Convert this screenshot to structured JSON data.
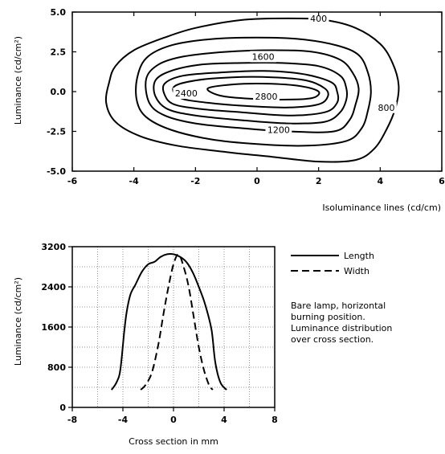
{
  "chart_data": [
    {
      "type": "line",
      "subtype": "contour",
      "title": "",
      "xlabel": "Isoluminance lines (cd/cm)",
      "ylabel": "Luminance (cd/cm²)",
      "xlim": [
        -6,
        6
      ],
      "ylim": [
        -5.0,
        5.0
      ],
      "xticks": [
        "-6",
        "-4",
        "-2",
        "0",
        "2",
        "4",
        "6"
      ],
      "yticks": [
        "5.0",
        "2.5",
        "0.0",
        "-2.5",
        "-5.0"
      ],
      "grid": false,
      "contour_labels": [
        "400",
        "1600",
        "2400",
        "2800",
        "800",
        "1200"
      ],
      "contours": [
        {
          "level": 400,
          "points": [
            [
              -4.8,
              0.6
            ],
            [
              -4.6,
              1.6
            ],
            [
              -4.0,
              2.6
            ],
            [
              -3.0,
              3.4
            ],
            [
              -2.0,
              4.0
            ],
            [
              -0.5,
              4.5
            ],
            [
              1.0,
              4.6
            ],
            [
              2.2,
              4.5
            ],
            [
              3.2,
              4.0
            ],
            [
              4.0,
              3.0
            ],
            [
              4.4,
              1.8
            ],
            [
              4.6,
              0.4
            ],
            [
              4.5,
              -1.0
            ],
            [
              4.2,
              -2.4
            ],
            [
              3.8,
              -3.6
            ],
            [
              3.2,
              -4.3
            ],
            [
              2.0,
              -4.4
            ],
            [
              0.5,
              -4.1
            ],
            [
              -1.0,
              -3.8
            ],
            [
              -2.6,
              -3.4
            ],
            [
              -3.8,
              -2.8
            ],
            [
              -4.6,
              -1.9
            ],
            [
              -4.9,
              -0.7
            ]
          ]
        },
        {
          "level": 800,
          "points": [
            [
              -3.9,
              0.8
            ],
            [
              -3.6,
              2.1
            ],
            [
              -2.8,
              2.9
            ],
            [
              -1.5,
              3.3
            ],
            [
              0.0,
              3.4
            ],
            [
              1.4,
              3.3
            ],
            [
              2.6,
              2.9
            ],
            [
              3.3,
              2.3
            ],
            [
              3.6,
              1.2
            ],
            [
              3.7,
              0.0
            ],
            [
              3.6,
              -1.2
            ],
            [
              3.4,
              -2.3
            ],
            [
              2.9,
              -3.1
            ],
            [
              1.6,
              -3.4
            ],
            [
              0.0,
              -3.3
            ],
            [
              -1.5,
              -3.0
            ],
            [
              -2.8,
              -2.4
            ],
            [
              -3.6,
              -1.6
            ],
            [
              -3.9,
              -0.6
            ]
          ]
        },
        {
          "level": 1200,
          "points": [
            [
              -3.6,
              0.8
            ],
            [
              -3.2,
              1.7
            ],
            [
              -2.4,
              2.2
            ],
            [
              -1.0,
              2.5
            ],
            [
              0.5,
              2.6
            ],
            [
              1.8,
              2.5
            ],
            [
              2.7,
              2.0
            ],
            [
              3.1,
              1.2
            ],
            [
              3.3,
              0.2
            ],
            [
              3.2,
              -0.8
            ],
            [
              3.0,
              -1.8
            ],
            [
              2.5,
              -2.5
            ],
            [
              1.0,
              -2.5
            ],
            [
              -0.5,
              -2.3
            ],
            [
              -2.0,
              -2.0
            ],
            [
              -3.0,
              -1.5
            ],
            [
              -3.5,
              -0.7
            ]
          ]
        },
        {
          "level": 1600,
          "points": [
            [
              -3.3,
              0.7
            ],
            [
              -2.8,
              1.3
            ],
            [
              -1.8,
              1.7
            ],
            [
              -0.5,
              1.8
            ],
            [
              0.8,
              1.8
            ],
            [
              2.0,
              1.6
            ],
            [
              2.7,
              1.0
            ],
            [
              2.9,
              0.2
            ],
            [
              2.9,
              -0.5
            ],
            [
              2.7,
              -1.3
            ],
            [
              2.2,
              -1.9
            ],
            [
              1.0,
              -2.0
            ],
            [
              -0.5,
              -1.8
            ],
            [
              -2.0,
              -1.5
            ],
            [
              -2.9,
              -1.1
            ],
            [
              -3.3,
              -0.3
            ]
          ]
        },
        {
          "level": 2000,
          "points": [
            [
              -3.0,
              0.5
            ],
            [
              -2.4,
              1.0
            ],
            [
              -1.2,
              1.2
            ],
            [
              0.2,
              1.3
            ],
            [
              1.5,
              1.1
            ],
            [
              2.4,
              0.6
            ],
            [
              2.6,
              0.0
            ],
            [
              2.6,
              -0.7
            ],
            [
              2.2,
              -1.3
            ],
            [
              1.0,
              -1.5
            ],
            [
              -0.5,
              -1.3
            ],
            [
              -1.8,
              -1.1
            ],
            [
              -2.7,
              -0.8
            ],
            [
              -3.0,
              -0.2
            ]
          ]
        },
        {
          "level": 2400,
          "points": [
            [
              -2.7,
              0.3
            ],
            [
              -2.0,
              0.7
            ],
            [
              -0.8,
              0.9
            ],
            [
              0.5,
              0.9
            ],
            [
              1.6,
              0.7
            ],
            [
              2.2,
              0.2
            ],
            [
              2.3,
              -0.3
            ],
            [
              2.0,
              -0.8
            ],
            [
              1.0,
              -1.0
            ],
            [
              -0.4,
              -0.9
            ],
            [
              -1.6,
              -0.7
            ],
            [
              -2.5,
              -0.4
            ]
          ]
        },
        {
          "level": 2800,
          "points": [
            [
              -1.6,
              0.2
            ],
            [
              -0.8,
              0.45
            ],
            [
              0.3,
              0.5
            ],
            [
              1.4,
              0.35
            ],
            [
              2.0,
              0.0
            ],
            [
              1.8,
              -0.4
            ],
            [
              1.0,
              -0.5
            ],
            [
              -0.2,
              -0.45
            ],
            [
              -1.2,
              -0.25
            ]
          ]
        }
      ]
    },
    {
      "type": "line",
      "title": "",
      "xlabel": "Cross section in mm",
      "ylabel": "Luminance (cd/cm²)",
      "xlim": [
        -8,
        8
      ],
      "ylim": [
        0,
        3200
      ],
      "xticks": [
        "-8",
        "-4",
        "0",
        "4",
        "8"
      ],
      "yticks": [
        "3200",
        "2400",
        "1600",
        "800",
        "0"
      ],
      "grid": true,
      "legend": "right",
      "series": [
        {
          "name": "Length",
          "dash": "solid",
          "points": [
            [
              -4.9,
              350
            ],
            [
              -4.5,
              500
            ],
            [
              -4.2,
              750
            ],
            [
              -3.9,
              1500
            ],
            [
              -3.7,
              1900
            ],
            [
              -3.4,
              2250
            ],
            [
              -3.0,
              2450
            ],
            [
              -2.5,
              2700
            ],
            [
              -2.0,
              2850
            ],
            [
              -1.5,
              2900
            ],
            [
              -1.0,
              3000
            ],
            [
              -0.5,
              3050
            ],
            [
              0.0,
              3050
            ],
            [
              0.5,
              3000
            ],
            [
              1.0,
              2900
            ],
            [
              1.5,
              2700
            ],
            [
              2.0,
              2400
            ],
            [
              2.5,
              2050
            ],
            [
              3.0,
              1550
            ],
            [
              3.3,
              900
            ],
            [
              3.7,
              500
            ],
            [
              4.2,
              350
            ]
          ]
        },
        {
          "name": "Width",
          "dash": "dashed",
          "points": [
            [
              -2.6,
              350
            ],
            [
              -2.2,
              450
            ],
            [
              -1.7,
              700
            ],
            [
              -1.2,
              1250
            ],
            [
              -0.8,
              1850
            ],
            [
              -0.4,
              2400
            ],
            [
              0.0,
              2850
            ],
            [
              0.4,
              3050
            ],
            [
              0.8,
              2800
            ],
            [
              1.2,
              2400
            ],
            [
              1.6,
              1800
            ],
            [
              2.0,
              1200
            ],
            [
              2.4,
              750
            ],
            [
              2.8,
              450
            ],
            [
              3.1,
              350
            ]
          ]
        }
      ],
      "annotation": [
        "Bare lamp, horizontal",
        "burning position.",
        "Luminance distribution",
        "over cross section."
      ]
    }
  ]
}
